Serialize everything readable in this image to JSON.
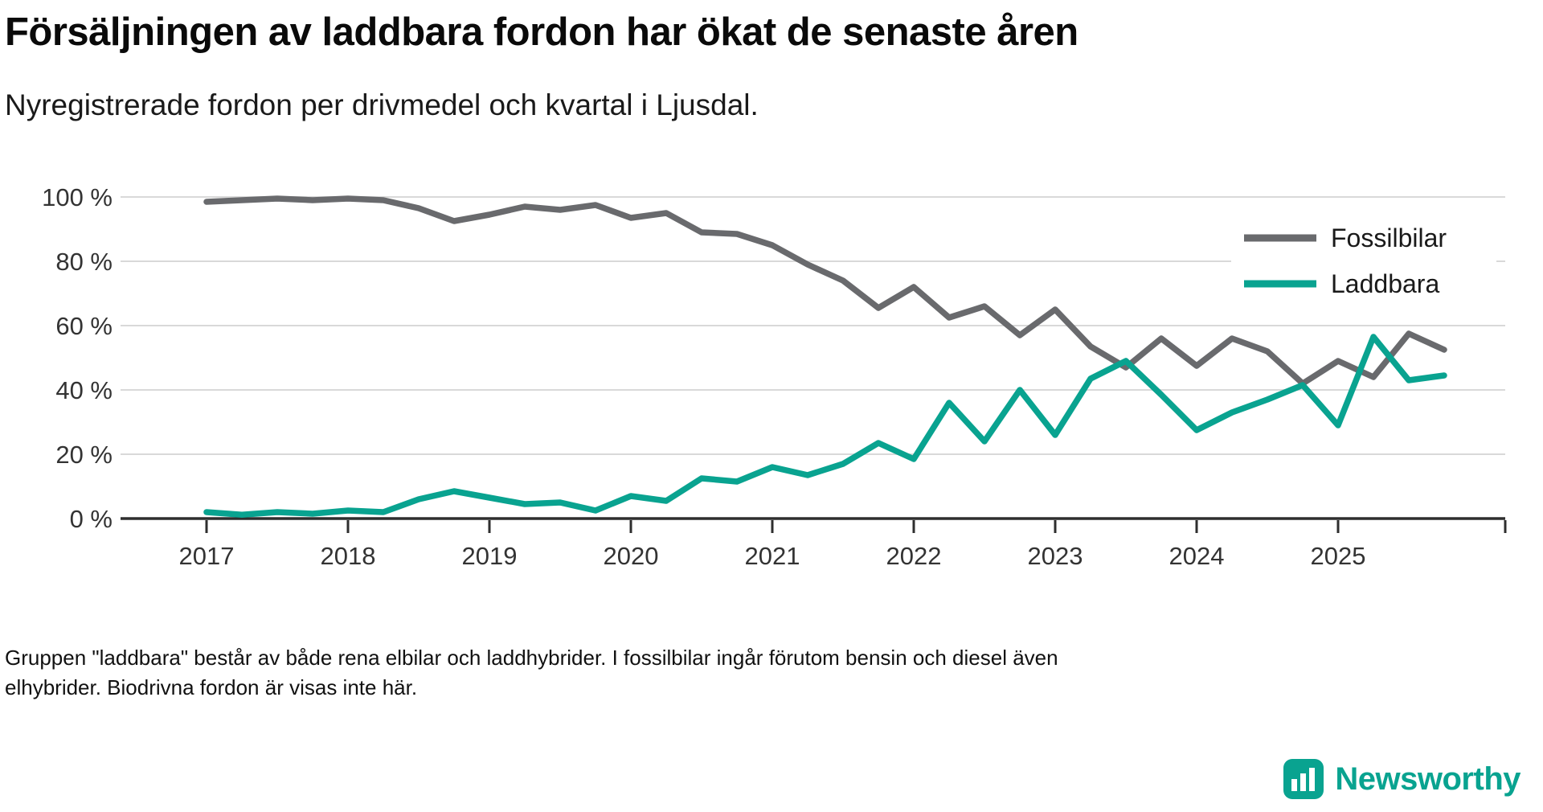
{
  "header": {
    "title": "Försäljningen av laddbara fordon har ökat de senaste åren",
    "subtitle": "Nyregistrerade fordon per drivmedel och kvartal i Ljusdal."
  },
  "chart_data": {
    "type": "line",
    "x_unit": "quarter",
    "x_start": "2017-Q1",
    "x_end": "2025-Q4",
    "quarters_per_year": 4,
    "x_tick_labels": [
      "2017",
      "2018",
      "2019",
      "2020",
      "2021",
      "2022",
      "2023",
      "2024",
      "2025"
    ],
    "y_tick_labels": [
      "100 %",
      "80 %",
      "60 %",
      "40 %",
      "20 %",
      "0 %"
    ],
    "y_tick_values": [
      100,
      80,
      60,
      40,
      20,
      0
    ],
    "ylim": [
      0,
      100
    ],
    "grid": true,
    "legend_position": "top-right",
    "series": [
      {
        "name": "Fossilbilar",
        "color": "#696a6d",
        "values": [
          98.5,
          99,
          99.5,
          99,
          99.5,
          99,
          96.5,
          92.5,
          94.5,
          97,
          96,
          97.5,
          93.5,
          95,
          89,
          88.5,
          85,
          79,
          74,
          65.5,
          72,
          62.5,
          66,
          57,
          65,
          53.5,
          47,
          56,
          47.5,
          56,
          52,
          42,
          49,
          44,
          57.5,
          52.5
        ]
      },
      {
        "name": "Laddbara",
        "color": "#09a390",
        "values": [
          2,
          1.2,
          2,
          1.5,
          2.5,
          2,
          6,
          8.5,
          6.5,
          4.5,
          5,
          2.5,
          7,
          5.5,
          12.5,
          11.5,
          16,
          13.5,
          17,
          23.5,
          18.5,
          36,
          24,
          40,
          26,
          43.5,
          49,
          38.5,
          27.5,
          33,
          37,
          41.5,
          29,
          56.5,
          43,
          44.5
        ]
      }
    ]
  },
  "footnote": {
    "lines": [
      "Gruppen \"laddbara\" består av både rena elbilar och laddhybrider. I fossilbilar ingår förutom bensin och diesel även",
      "elhybrider. Biodrivna fordon är visas inte här."
    ]
  },
  "branding": {
    "name": "Newsworthy",
    "icon": "bar-chart-logo",
    "color": "#09a390"
  }
}
